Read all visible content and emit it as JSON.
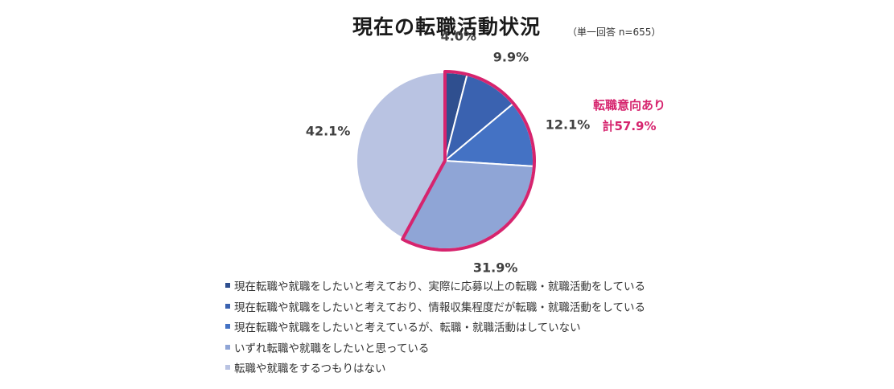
{
  "title": "現在の転職活動状況",
  "subtitle": "（単一回答 n=655）",
  "callout": {
    "line1": "転職意向あり",
    "line2": "計57.9%",
    "color": "#d6246e"
  },
  "chart_data": {
    "type": "pie",
    "title": "現在の転職活動状況",
    "series": [
      {
        "name": "現在転職や就職をしたいと考えており、実際に応募以上の転職・就職活動をしている",
        "label": "4.0%",
        "value": 4.0,
        "color": "#2f4f8f"
      },
      {
        "name": "現在転職や就職をしたいと考えており、情報収集程度だが転職・就職活動をしている",
        "label": "9.9%",
        "value": 9.9,
        "color": "#3a62b0"
      },
      {
        "name": "現在転職や就職をしたいと考えているが、転職・就職活動はしていない",
        "label": "12.1%",
        "value": 12.1,
        "color": "#4472c4"
      },
      {
        "name": "いずれ転職や就職をしたいと思っている",
        "label": "31.9%",
        "value": 31.9,
        "color": "#8fa5d6"
      },
      {
        "name": "転職や就職をするつもりはない",
        "label": "42.1%",
        "value": 42.1,
        "color": "#b9c3e2"
      }
    ],
    "highlight_group": {
      "label": "転職意向あり 計57.9%",
      "value": 57.9,
      "color": "#d6246e",
      "series_indices": [
        0,
        1,
        2,
        3
      ]
    },
    "legend_position": "bottom",
    "start_angle": "12 o'clock",
    "direction": "clockwise"
  }
}
